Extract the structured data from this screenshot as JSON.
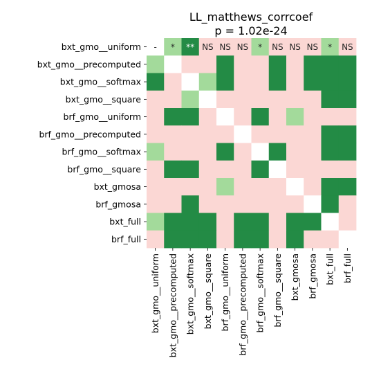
{
  "chart_data": {
    "type": "heatmap",
    "title": "LL_matthews_corrcoef",
    "subtitle": "p = 1.02e-24",
    "row_labels": [
      "bxt_gmo__uniform",
      "bxt_gmo__precomputed",
      "bxt_gmo__softmax",
      "bxt_gmo__square",
      "brf_gmo__uniform",
      "brf_gmo__precomputed",
      "brf_gmo__softmax",
      "brf_gmo__square",
      "bxt_gmosa",
      "brf_gmosa",
      "bxt_full",
      "brf_full"
    ],
    "col_labels": [
      "bxt_gmo__uniform",
      "bxt_gmo__precomputed",
      "bxt_gmo__softmax",
      "bxt_gmo__square",
      "brf_gmo__uniform",
      "brf_gmo__precomputed",
      "brf_gmo__softmax",
      "brf_gmo__square",
      "bxt_gmosa",
      "brf_gmosa",
      "bxt_full",
      "brf_full"
    ],
    "legend": {
      "0": "white (diagonal)",
      "1": "pink",
      "2": "light green",
      "3": "dark green"
    },
    "colors": {
      "0": "#ffffff",
      "1": "#fbd7d4",
      "2": "#a3da9b",
      "3": "#238b45"
    },
    "cells": [
      [
        0,
        2,
        3,
        1,
        1,
        1,
        2,
        1,
        1,
        1,
        2,
        1
      ],
      [
        2,
        0,
        1,
        1,
        3,
        1,
        1,
        3,
        1,
        3,
        3,
        3
      ],
      [
        3,
        1,
        0,
        2,
        3,
        1,
        1,
        3,
        1,
        3,
        3,
        3
      ],
      [
        1,
        1,
        2,
        0,
        1,
        1,
        1,
        1,
        1,
        1,
        3,
        3
      ],
      [
        1,
        3,
        3,
        1,
        0,
        1,
        3,
        1,
        2,
        1,
        1,
        1
      ],
      [
        1,
        1,
        1,
        1,
        1,
        0,
        1,
        1,
        1,
        1,
        3,
        3
      ],
      [
        2,
        1,
        1,
        1,
        3,
        1,
        0,
        3,
        1,
        1,
        3,
        3
      ],
      [
        1,
        3,
        3,
        1,
        1,
        1,
        3,
        0,
        1,
        1,
        1,
        1
      ],
      [
        1,
        1,
        1,
        1,
        2,
        1,
        1,
        1,
        0,
        1,
        3,
        3
      ],
      [
        1,
        1,
        3,
        1,
        1,
        1,
        1,
        1,
        1,
        0,
        3,
        1
      ],
      [
        2,
        3,
        3,
        3,
        1,
        3,
        3,
        1,
        3,
        3,
        0,
        1
      ],
      [
        1,
        3,
        3,
        3,
        1,
        3,
        3,
        1,
        3,
        1,
        1,
        0
      ]
    ],
    "first_row_annotations": [
      "-",
      "*",
      "**",
      "NS",
      "NS",
      "NS",
      "*",
      "NS",
      "NS",
      "NS",
      "*",
      "NS"
    ]
  }
}
